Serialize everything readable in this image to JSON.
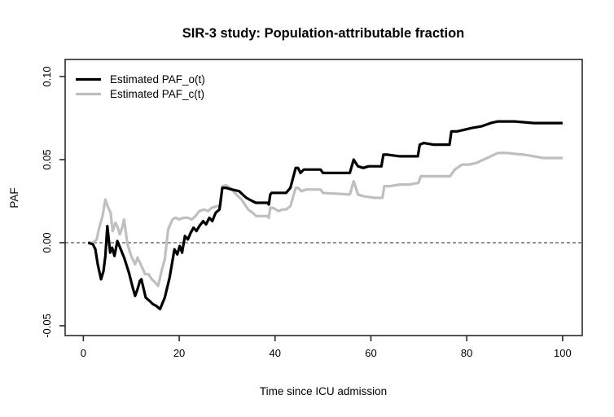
{
  "chart_data": {
    "type": "line",
    "title": "SIR-3 study: Population-attributable fraction",
    "xlabel": "Time since ICU admission",
    "ylabel": "PAF",
    "xlim": [
      -3.8,
      104.1
    ],
    "ylim": [
      -0.0559,
      0.1103
    ],
    "x_ticks": [
      0,
      20,
      40,
      60,
      80,
      100
    ],
    "x_tick_labels": [
      "0",
      "20",
      "40",
      "60",
      "80",
      "100"
    ],
    "y_ticks": [
      -0.05,
      0.0,
      0.05,
      0.1
    ],
    "y_tick_labels": [
      "-0.05",
      "0.00",
      "0.05",
      "0.10"
    ],
    "grid": "off",
    "legend_position": "top-left",
    "reference_line": {
      "y": 0.0,
      "style": "dashed",
      "color": "#555555"
    },
    "box_color": "#2b2b2b",
    "series": [
      {
        "name": "Estimated PAF_o(t)",
        "color": "#000000",
        "width": 3.2,
        "x": [
          1,
          2,
          2.5,
          3,
          3.7,
          4.2,
          4.6,
          5,
          5.6,
          6,
          6.5,
          7.1,
          7.8,
          8.5,
          9.5,
          10.3,
          10.8,
          11.3,
          11.8,
          12.1,
          13,
          13.8,
          14.5,
          15.2,
          16,
          17,
          18,
          19,
          19.6,
          20.1,
          20.6,
          21.2,
          21.8,
          22.4,
          23,
          23.6,
          24.2,
          25,
          25.6,
          26.3,
          26.9,
          27.6,
          28.4,
          29,
          29.8,
          31,
          32.5,
          34,
          35.3,
          36,
          38.4,
          38.7,
          39,
          39.3,
          42.3,
          43.2,
          44.3,
          44.8,
          45.3,
          46,
          49.5,
          50,
          55.6,
          56.4,
          57.3,
          58.4,
          59.5,
          62.2,
          62.6,
          63.5,
          66,
          69.8,
          70.2,
          71,
          73,
          76.4,
          76.8,
          78,
          79.5,
          81,
          83,
          85,
          86.5,
          88,
          90,
          92,
          94,
          96,
          98,
          100
        ],
        "y": [
          0,
          -0.001,
          -0.004,
          -0.013,
          -0.022,
          -0.017,
          -0.008,
          0.01,
          -0.006,
          -0.003,
          -0.008,
          0.001,
          -0.004,
          -0.009,
          -0.018,
          -0.027,
          -0.032,
          -0.028,
          -0.023,
          -0.022,
          -0.033,
          -0.035,
          -0.037,
          -0.038,
          -0.04,
          -0.033,
          -0.021,
          -0.004,
          -0.007,
          -0.002,
          -0.006,
          0.004,
          0.002,
          0.006,
          0.009,
          0.007,
          0.01,
          0.013,
          0.011,
          0.015,
          0.013,
          0.018,
          0.02,
          0.033,
          0.033,
          0.032,
          0.031,
          0.027,
          0.025,
          0.024,
          0.024,
          0.023,
          0.029,
          0.03,
          0.03,
          0.033,
          0.045,
          0.045,
          0.042,
          0.044,
          0.044,
          0.042,
          0.042,
          0.05,
          0.046,
          0.045,
          0.046,
          0.046,
          0.053,
          0.053,
          0.052,
          0.052,
          0.059,
          0.06,
          0.059,
          0.059,
          0.067,
          0.067,
          0.068,
          0.069,
          0.07,
          0.072,
          0.073,
          0.073,
          0.073,
          0.0725,
          0.072,
          0.072,
          0.072,
          0.072
        ]
      },
      {
        "name": "Estimated PAF_c(t)",
        "color": "#bfbfbf",
        "width": 3.2,
        "x": [
          1,
          2,
          2.8,
          3.3,
          4,
          4.6,
          5.2,
          5.7,
          6.1,
          6.7,
          7.2,
          7.6,
          8.1,
          8.5,
          9.2,
          10,
          10.8,
          11.3,
          11.8,
          12.9,
          13.6,
          14.3,
          15,
          15.6,
          16.4,
          17,
          17.7,
          18.6,
          19.2,
          20,
          20.9,
          21.8,
          22.6,
          23.4,
          24.2,
          25.2,
          26,
          26.8,
          28,
          28.6,
          29,
          29.8,
          31,
          31.9,
          33,
          34.4,
          35.3,
          36.1,
          38.4,
          38.7,
          39,
          39.5,
          40.8,
          41.5,
          42.3,
          43.2,
          44.3,
          44.8,
          45.5,
          46.5,
          49.5,
          50,
          55.6,
          56.4,
          57.3,
          58.4,
          60.8,
          62.4,
          62.8,
          64,
          66,
          68,
          69.9,
          70.4,
          72,
          74,
          76.5,
          77.5,
          79,
          80.5,
          82,
          83.5,
          85,
          86.5,
          88.5,
          90,
          92,
          94,
          96,
          98,
          100
        ],
        "y": [
          0,
          0,
          0.002,
          0.009,
          0.016,
          0.026,
          0.021,
          0.018,
          0.007,
          0.012,
          0.009,
          0.005,
          0.009,
          0.014,
          -0.001,
          -0.008,
          -0.013,
          -0.009,
          -0.012,
          -0.019,
          -0.019,
          -0.022,
          -0.024,
          -0.026,
          -0.016,
          -0.01,
          0.008,
          0.014,
          0.015,
          0.014,
          0.015,
          0.015,
          0.014,
          0.016,
          0.019,
          0.02,
          0.019,
          0.021,
          0.022,
          0.022,
          0.034,
          0.0345,
          0.032,
          0.029,
          0.026,
          0.02,
          0.018,
          0.016,
          0.016,
          0.015,
          0.021,
          0.021,
          0.019,
          0.02,
          0.02,
          0.022,
          0.033,
          0.033,
          0.031,
          0.032,
          0.032,
          0.03,
          0.029,
          0.037,
          0.029,
          0.028,
          0.027,
          0.027,
          0.034,
          0.034,
          0.035,
          0.035,
          0.036,
          0.04,
          0.04,
          0.04,
          0.04,
          0.044,
          0.047,
          0.047,
          0.048,
          0.05,
          0.052,
          0.054,
          0.054,
          0.0535,
          0.053,
          0.052,
          0.051,
          0.051,
          0.051
        ]
      }
    ]
  }
}
